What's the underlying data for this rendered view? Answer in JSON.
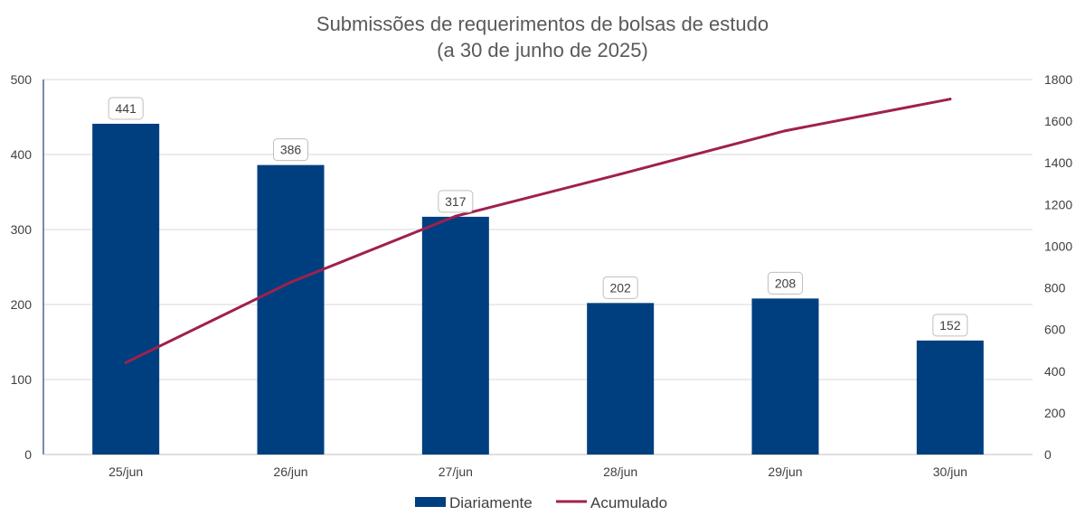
{
  "chart_data": {
    "type": "bar",
    "title": "Submissões de requerimentos de bolsas de estudo",
    "subtitle": "(a 30 de junho de 2025)",
    "categories": [
      "25/jun",
      "26/jun",
      "27/jun",
      "28/jun",
      "29/jun",
      "30/jun"
    ],
    "series": [
      {
        "name": "Diariamente",
        "type": "bar",
        "axis": "left",
        "color": "#003F7F",
        "values": [
          441,
          386,
          317,
          202,
          208,
          152
        ],
        "data_labels": [
          "441",
          "386",
          "317",
          "202",
          "208",
          "152"
        ]
      },
      {
        "name": "Acumulado",
        "type": "line",
        "axis": "right",
        "color": "#A0204F",
        "values": [
          441,
          827,
          1144,
          1346,
          1554,
          1706
        ]
      }
    ],
    "y_left": {
      "min": 0,
      "max": 500,
      "ticks": [
        "0",
        "100",
        "200",
        "300",
        "400",
        "500"
      ]
    },
    "y_right": {
      "min": 0,
      "max": 1800,
      "ticks": [
        "0",
        "200",
        "400",
        "600",
        "800",
        "1000",
        "1200",
        "1400",
        "1600",
        "1800"
      ]
    },
    "grid": true,
    "legend_position": "bottom"
  }
}
